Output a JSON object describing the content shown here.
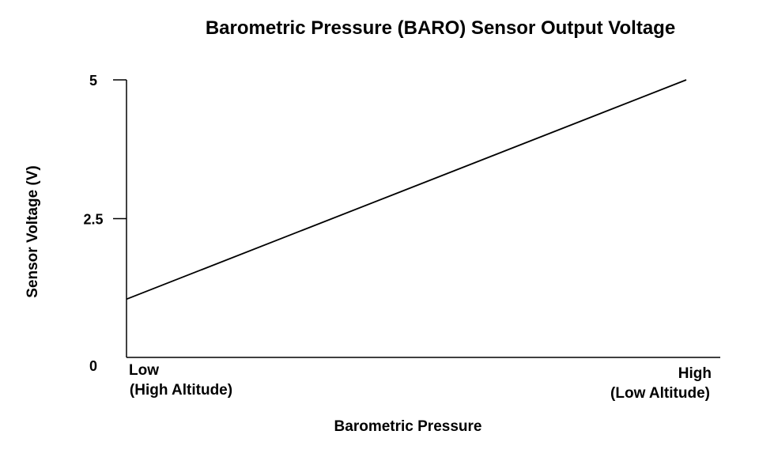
{
  "chart_data": {
    "type": "line",
    "title": "Barometric Pressure (BARO) Sensor Output Voltage",
    "xlabel": "Barometric Pressure",
    "ylabel": "Sensor Voltage (V)",
    "ylim": [
      0,
      5
    ],
    "yticks": [
      "0",
      "2.5",
      "5"
    ],
    "categories": [
      {
        "line1": "Low",
        "line2": "(High Altitude)"
      },
      {
        "line1": "High",
        "line2": "(Low Altitude)"
      }
    ],
    "x": [
      0,
      1
    ],
    "series": [
      {
        "values": [
          1.05,
          5.0
        ]
      }
    ],
    "grid": false,
    "legend": "none",
    "line_color": "#000000"
  }
}
